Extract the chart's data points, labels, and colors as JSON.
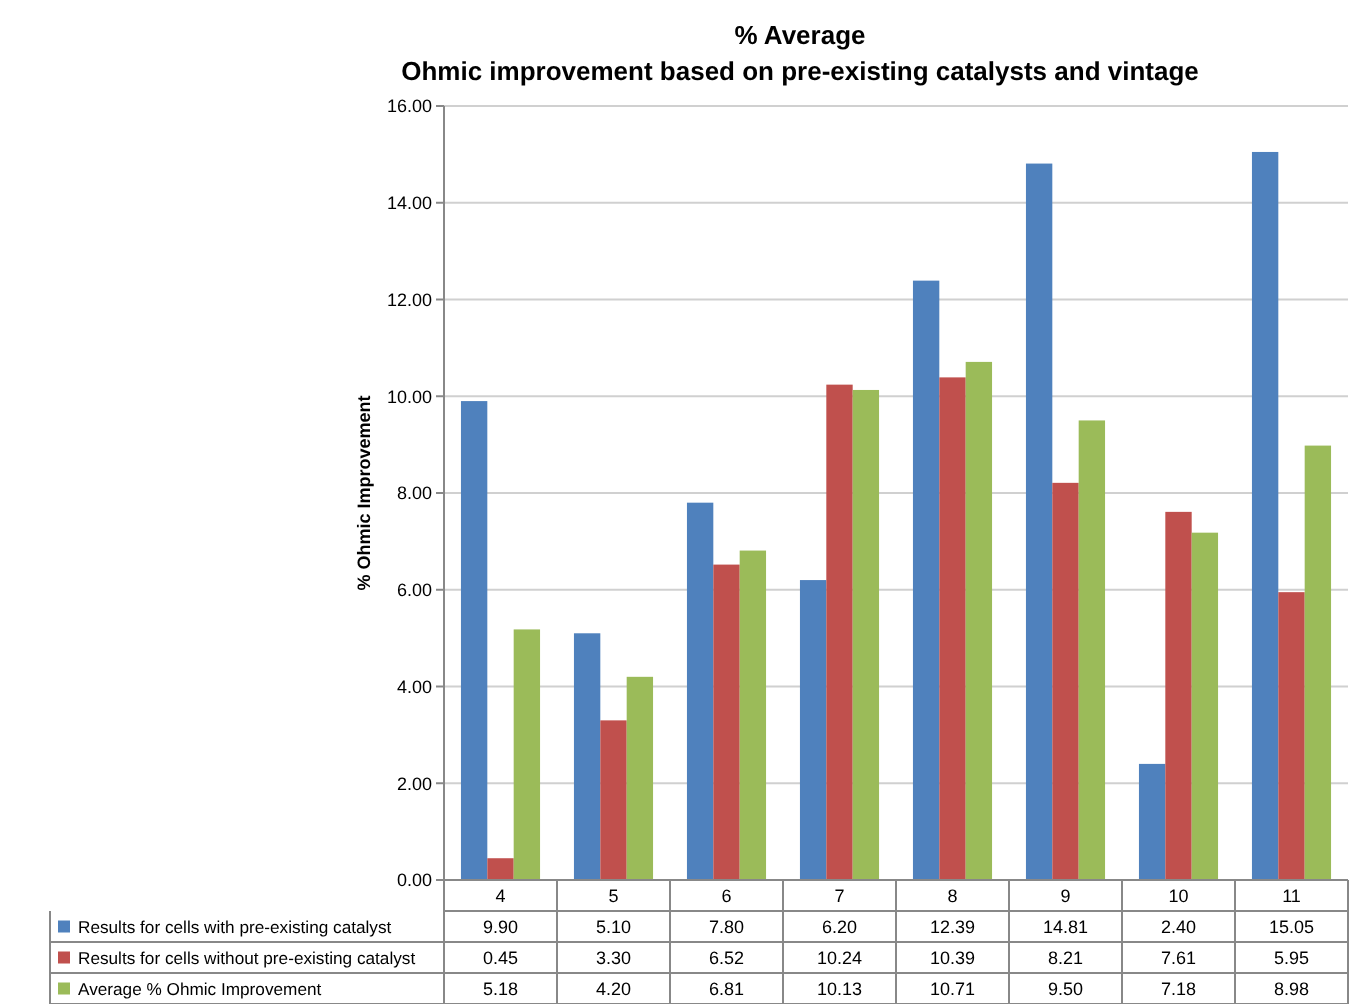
{
  "chart_data": {
    "type": "bar",
    "title": "% Average",
    "subtitle": "Ohmic improvement based on pre-existing catalysts and vintage",
    "ylabel": "% Ohmic Improvement",
    "categories": [
      "4",
      "5",
      "6",
      "7",
      "8",
      "9",
      "10",
      "11"
    ],
    "series": [
      {
        "name": "Results for cells with pre-existing catalyst",
        "color": "#4f81bd",
        "values": [
          9.9,
          5.1,
          7.8,
          6.2,
          12.39,
          14.81,
          2.4,
          15.05
        ],
        "value_labels": [
          "9.90",
          "5.10",
          "7.80",
          "6.20",
          "12.39",
          "14.81",
          "2.40",
          "15.05"
        ]
      },
      {
        "name": "Results for cells without pre-existing catalyst",
        "color": "#c0504d",
        "values": [
          0.45,
          3.3,
          6.52,
          10.24,
          10.39,
          8.21,
          7.61,
          5.95
        ],
        "value_labels": [
          "0.45",
          "3.30",
          "6.52",
          "10.24",
          "10.39",
          "8.21",
          "7.61",
          "5.95"
        ]
      },
      {
        "name": "Average % Ohmic Improvement",
        "color": "#9bbb59",
        "values": [
          5.18,
          4.2,
          6.81,
          10.13,
          10.71,
          9.5,
          7.18,
          8.98
        ],
        "value_labels": [
          "5.18",
          "4.20",
          "6.81",
          "10.13",
          "10.71",
          "9.50",
          "7.18",
          "8.98"
        ]
      }
    ],
    "ylim": [
      0,
      16
    ],
    "yticks": [
      {
        "value": 0,
        "label": "0.00"
      },
      {
        "value": 2,
        "label": "2.00"
      },
      {
        "value": 4,
        "label": "4.00"
      },
      {
        "value": 6,
        "label": "6.00"
      },
      {
        "value": 8,
        "label": "8.00"
      },
      {
        "value": 10,
        "label": "10.00"
      },
      {
        "value": 12,
        "label": "12.00"
      },
      {
        "value": 14,
        "label": "14.00"
      },
      {
        "value": 16,
        "label": "16.00"
      }
    ],
    "grid": "y",
    "legend": "bottom"
  }
}
